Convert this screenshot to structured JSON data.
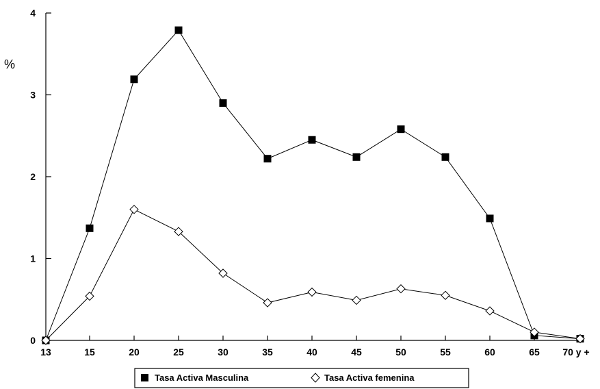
{
  "chart_data": {
    "type": "line",
    "title": "",
    "xlabel": "",
    "ylabel": "%",
    "categories": [
      "13",
      "15",
      "20",
      "25",
      "30",
      "35",
      "40",
      "45",
      "50",
      "55",
      "60",
      "65",
      "70 y +"
    ],
    "ylim": [
      0,
      4
    ],
    "yticks": [
      0,
      1,
      2,
      3,
      4
    ],
    "grid": false,
    "legend_position": "bottom",
    "series": [
      {
        "name": "Tasa Activa Masculina",
        "marker": "filled-square",
        "color": "#000000",
        "values": [
          0.0,
          1.37,
          3.19,
          3.79,
          2.9,
          2.22,
          2.45,
          2.24,
          2.58,
          2.24,
          1.49,
          0.06,
          0.02
        ]
      },
      {
        "name": "Tasa Activa femenina",
        "marker": "open-diamond",
        "color": "#000000",
        "values": [
          0.0,
          0.54,
          1.6,
          1.33,
          0.82,
          0.46,
          0.59,
          0.49,
          0.63,
          0.55,
          0.36,
          0.1,
          0.02
        ]
      }
    ]
  }
}
